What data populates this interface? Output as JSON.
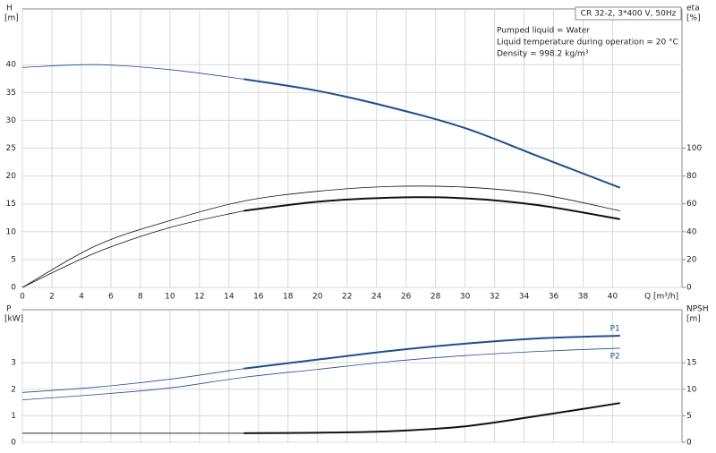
{
  "chart_data": [
    {
      "type": "line",
      "ylabel": "H",
      "yunit": "[m]",
      "y2label": "eta",
      "y2unit": "[%]",
      "xlabel": "Q [m³/h]",
      "title": "CR 32-2, 3*400 V, 50Hz",
      "annotations": [
        "Pumped liquid = Water",
        "Liquid temperature during operation = 20 °C",
        "Density = 998.2 kg/m³"
      ],
      "xlim": [
        0,
        44.7
      ],
      "xticks": [
        0,
        2,
        4,
        6,
        8,
        10,
        12,
        14,
        16,
        18,
        20,
        22,
        24,
        26,
        28,
        30,
        32,
        34,
        36,
        38,
        40
      ],
      "ylim": [
        0,
        50
      ],
      "yticks": [
        0,
        5,
        10,
        15,
        20,
        25,
        30,
        35,
        40
      ],
      "y2lim": [
        0,
        200
      ],
      "y2ticks": [
        0,
        20,
        40,
        60,
        80,
        100
      ],
      "grid": true,
      "series": [
        {
          "color": "#1f4e8c",
          "width": 0.8,
          "x": [
            0,
            5,
            10,
            15
          ],
          "values": [
            39.5,
            40.0,
            39.1,
            37.4
          ]
        },
        {
          "color": "#1f4e8c",
          "width": 2,
          "x": [
            15,
            20,
            25,
            30,
            35,
            40.5
          ],
          "values": [
            37.4,
            35.3,
            32.3,
            28.6,
            23.5,
            17.9
          ]
        },
        {
          "color": "#111111",
          "width": 0.8,
          "axis": "y2",
          "x": [
            0,
            5,
            10,
            15,
            20,
            25,
            30,
            35,
            40.5
          ],
          "values": [
            0,
            30,
            48,
            62,
            69,
            72.5,
            72,
            67,
            55
          ]
        },
        {
          "color": "#111111",
          "width": 0.8,
          "axis": "y2",
          "x": [
            0,
            5,
            10,
            15
          ],
          "values": [
            0,
            25,
            43,
            55
          ]
        },
        {
          "color": "#111111",
          "width": 2,
          "axis": "y2",
          "x": [
            15,
            20,
            25,
            30,
            35,
            40.5
          ],
          "values": [
            55,
            61.5,
            64.5,
            64,
            59,
            49
          ]
        }
      ]
    },
    {
      "type": "line",
      "ylabel": "P",
      "yunit": "[kW]",
      "y2label": "NPSH",
      "y2unit": "[m]",
      "xlim": [
        0,
        44.7
      ],
      "ylim": [
        0,
        5
      ],
      "yticks": [
        0,
        1,
        2,
        3
      ],
      "y2lim": [
        0,
        25
      ],
      "y2ticks": [
        0,
        5,
        10,
        15
      ],
      "grid": true,
      "series": [
        {
          "color": "#1f4e8c",
          "width": 0.8,
          "x": [
            0,
            5,
            10,
            15
          ],
          "values": [
            1.88,
            2.08,
            2.38,
            2.78
          ]
        },
        {
          "name": "P1",
          "color": "#1f4e8c",
          "width": 2,
          "x": [
            15,
            20,
            25,
            30,
            35,
            40.5
          ],
          "values": [
            2.78,
            3.12,
            3.45,
            3.72,
            3.92,
            4.02
          ]
        },
        {
          "name": "P2",
          "color": "#1f4e8c",
          "width": 0.8,
          "x": [
            0,
            5,
            10,
            15,
            20,
            25,
            30,
            35,
            40.5
          ],
          "values": [
            1.6,
            1.8,
            2.05,
            2.45,
            2.75,
            3.05,
            3.27,
            3.43,
            3.55
          ]
        },
        {
          "color": "#111111",
          "width": 0.8,
          "axis": "y2",
          "x": [
            0,
            15
          ],
          "values": [
            1.7,
            1.7
          ]
        },
        {
          "color": "#111111",
          "width": 2,
          "axis": "y2",
          "x": [
            15,
            20,
            25,
            30,
            35,
            40.5
          ],
          "values": [
            1.7,
            1.8,
            2.1,
            3.0,
            5.0,
            7.4
          ]
        }
      ]
    }
  ]
}
